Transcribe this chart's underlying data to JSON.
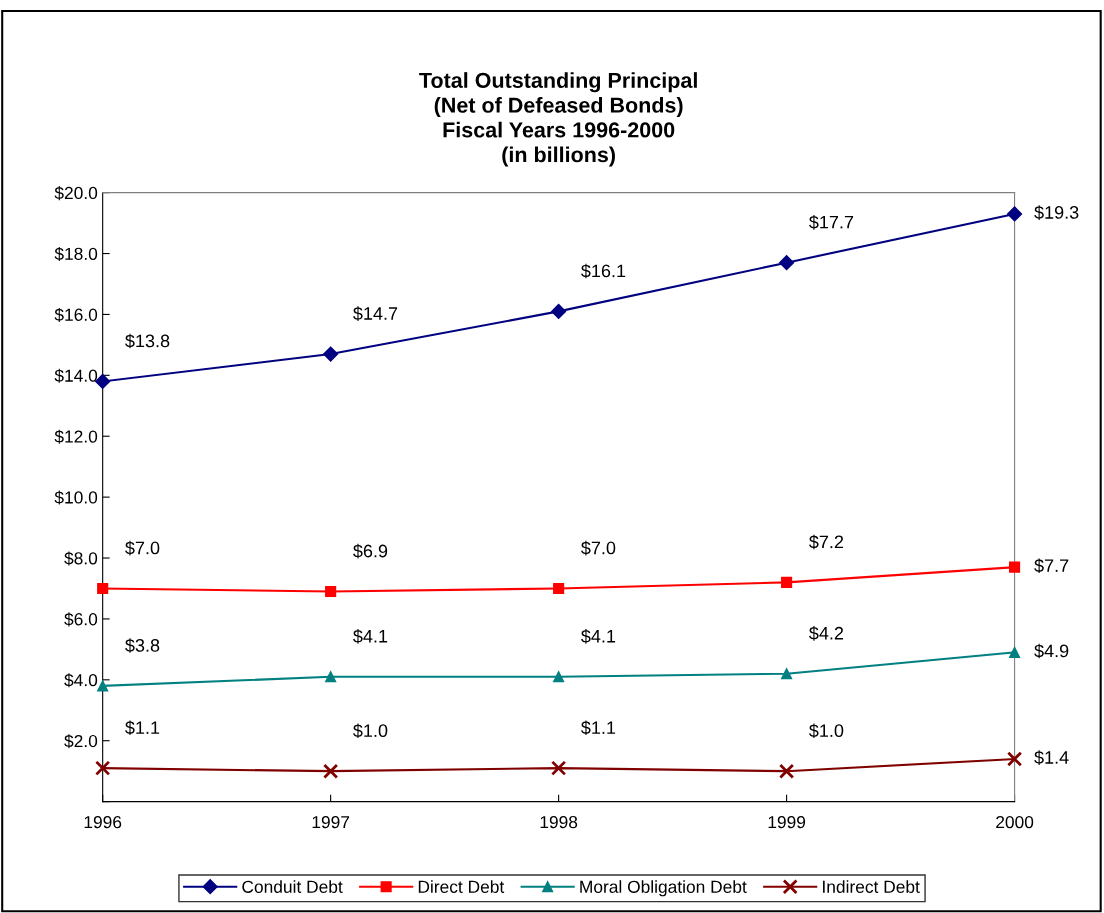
{
  "chart_data": {
    "type": "line",
    "title": "Total Outstanding Principal\n(Net of Defeased Bonds)\nFiscal Years 1996-2000\n(in billions)",
    "x": [
      1996,
      1997,
      1998,
      1999,
      2000
    ],
    "series": [
      {
        "name": "Conduit Debt",
        "color": "#000080",
        "marker": "diamond",
        "values": [
          13.8,
          14.7,
          16.1,
          17.7,
          19.3
        ],
        "value_labels": [
          "$13.8",
          "$14.7",
          "$16.1",
          "$17.7",
          "$19.3"
        ]
      },
      {
        "name": "Direct Debt",
        "color": "#ff0000",
        "marker": "square",
        "values": [
          7.0,
          6.9,
          7.0,
          7.2,
          7.7
        ],
        "value_labels": [
          "$7.0",
          "$6.9",
          "$7.0",
          "$7.2",
          "$7.7"
        ]
      },
      {
        "name": "Moral Obligation Debt",
        "color": "#008080",
        "marker": "triangle",
        "values": [
          3.8,
          4.1,
          4.1,
          4.2,
          4.9
        ],
        "value_labels": [
          "$3.8",
          "$4.1",
          "$4.1",
          "$4.2",
          "$4.9"
        ]
      },
      {
        "name": "Indirect Debt",
        "color": "#800000",
        "marker": "cross",
        "values": [
          1.1,
          1.0,
          1.1,
          1.0,
          1.4
        ],
        "value_labels": [
          "$1.1",
          "$1.0",
          "$1.1",
          "$1.0",
          "$1.4"
        ]
      }
    ],
    "xlim": [
      1996,
      2000
    ],
    "xticks": [
      1996,
      1997,
      1998,
      1999,
      2000
    ],
    "ylim": [
      0,
      20
    ],
    "yticks": [
      {
        "value": 0,
        "label": null
      },
      {
        "value": 2,
        "label": "$2.0"
      },
      {
        "value": 4,
        "label": "$4.0"
      },
      {
        "value": 6,
        "label": "$6.0"
      },
      {
        "value": 8,
        "label": "$8.0"
      },
      {
        "value": 10,
        "label": "$10.0"
      },
      {
        "value": 12,
        "label": "$12.0"
      },
      {
        "value": 14,
        "label": "$14.0"
      },
      {
        "value": 16,
        "label": "$16.0"
      },
      {
        "value": 18,
        "label": "$18.0"
      },
      {
        "value": 20,
        "label": "$20.0"
      }
    ],
    "grid": false,
    "legend": "bottom",
    "line_style": "solid"
  }
}
